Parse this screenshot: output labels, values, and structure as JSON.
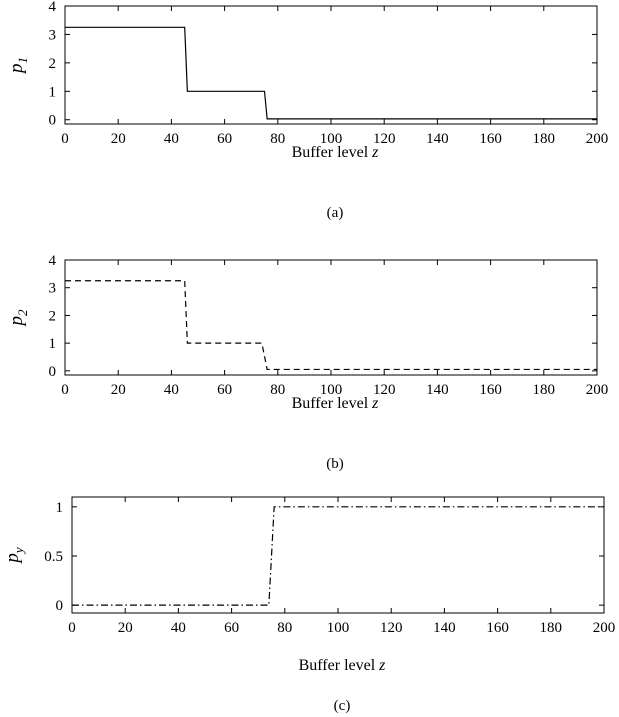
{
  "chart_data": [
    {
      "type": "line",
      "panel_label": "(a)",
      "xlabel": "Buffer level",
      "xlabel_var": "z",
      "ylabel_base": "p",
      "ylabel_sub": "1",
      "xlim": [
        0,
        200
      ],
      "ylim": [
        -0.15,
        4
      ],
      "xticks": [
        0,
        20,
        40,
        60,
        80,
        100,
        120,
        140,
        160,
        180,
        200
      ],
      "yticks": [
        0,
        1,
        2,
        3,
        4
      ],
      "series": [
        {
          "style": "solid",
          "x": [
            0,
            45,
            45,
            46,
            46,
            75,
            75,
            76,
            76,
            200
          ],
          "y": [
            3.25,
            3.25,
            3.25,
            1.0,
            1.0,
            1.0,
            1.0,
            0.03,
            0.03,
            0.03
          ]
        }
      ]
    },
    {
      "type": "line",
      "panel_label": "(b)",
      "xlabel": "Buffer level",
      "xlabel_var": "z",
      "ylabel_base": "p",
      "ylabel_sub": "2",
      "xlim": [
        0,
        200
      ],
      "ylim": [
        -0.15,
        4
      ],
      "xticks": [
        0,
        20,
        40,
        60,
        80,
        100,
        120,
        140,
        160,
        180,
        200
      ],
      "yticks": [
        0,
        1,
        2,
        3,
        4
      ],
      "series": [
        {
          "style": "dashed",
          "x": [
            0,
            45,
            45,
            46,
            46,
            74,
            74,
            76,
            76,
            200
          ],
          "y": [
            3.25,
            3.25,
            3.25,
            1.0,
            1.0,
            1.0,
            1.0,
            0.05,
            0.05,
            0.05
          ]
        }
      ]
    },
    {
      "type": "line",
      "panel_label": "(c)",
      "xlabel": "Buffer level",
      "xlabel_var": "z",
      "ylabel_base": "p",
      "ylabel_sub": "y",
      "xlim": [
        0,
        200
      ],
      "ylim": [
        -0.08,
        1.1
      ],
      "xticks": [
        0,
        20,
        40,
        60,
        80,
        100,
        120,
        140,
        160,
        180,
        200
      ],
      "yticks": [
        0,
        0.5,
        1
      ],
      "series": [
        {
          "style": "dashdot",
          "x": [
            0,
            74,
            75,
            76,
            200
          ],
          "y": [
            0,
            0,
            0.5,
            1,
            1
          ]
        }
      ]
    }
  ]
}
